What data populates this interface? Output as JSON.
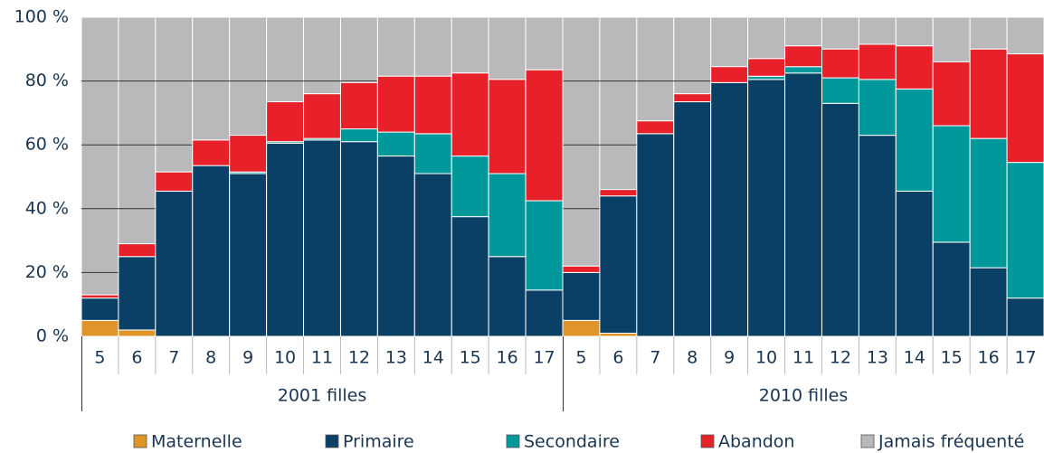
{
  "chart_data": {
    "type": "stacked-bar",
    "groups": [
      {
        "name": "2001 filles",
        "categories": [
          "5",
          "6",
          "7",
          "8",
          "9",
          "10",
          "11",
          "12",
          "13",
          "14",
          "15",
          "16",
          "17"
        ]
      },
      {
        "name": "2010 filles",
        "categories": [
          "5",
          "6",
          "7",
          "8",
          "9",
          "10",
          "11",
          "12",
          "13",
          "14",
          "15",
          "16",
          "17"
        ]
      }
    ],
    "series": [
      {
        "name": "Maternelle",
        "color": "#e0952a",
        "values": [
          5,
          2,
          0,
          0,
          0,
          0,
          0,
          0,
          0,
          0,
          0,
          0,
          0,
          5,
          1,
          0,
          0,
          0,
          0,
          0,
          0,
          0,
          0,
          0,
          0,
          0
        ]
      },
      {
        "name": "Primaire",
        "color": "#0a4066",
        "values": [
          7,
          23,
          45.5,
          53.5,
          51,
          60.5,
          61.5,
          61,
          56.5,
          51,
          37.5,
          25,
          14.5,
          15,
          43,
          63.5,
          73.5,
          79.5,
          80.5,
          82.5,
          73,
          63,
          45.5,
          29.5,
          21.5,
          12
        ]
      },
      {
        "name": "Secondaire",
        "color": "#00989a",
        "values": [
          0,
          0,
          0,
          0,
          0.5,
          0.5,
          0.5,
          4,
          7.5,
          12.5,
          19,
          26,
          28,
          0,
          0,
          0,
          0,
          0,
          1,
          2,
          8,
          17.5,
          32,
          36.5,
          40.5,
          42.5
        ]
      },
      {
        "name": "Abandon",
        "color": "#e8202a",
        "values": [
          1,
          4,
          6,
          8,
          11.5,
          12.5,
          14,
          14.5,
          17.5,
          18,
          26,
          29.5,
          41,
          2,
          2,
          4,
          2.5,
          5,
          5.5,
          6.5,
          9,
          11,
          13.5,
          20,
          28,
          34
        ]
      },
      {
        "name": "Jamais fréquenté",
        "color": "#b9b9bb",
        "values": [
          87,
          71,
          48.5,
          38.5,
          37,
          26.5,
          24,
          20.5,
          18.5,
          18.5,
          17.5,
          19.5,
          16.5,
          78,
          54,
          32.5,
          24,
          15.5,
          13,
          9,
          10,
          8.5,
          9,
          14,
          10,
          11.5
        ]
      }
    ],
    "ylim": [
      0,
      100
    ],
    "yticks": [
      {
        "value": 0,
        "label": "0 %"
      },
      {
        "value": 20,
        "label": "20 %"
      },
      {
        "value": 40,
        "label": "40 %"
      },
      {
        "value": 60,
        "label": "60 %"
      },
      {
        "value": 80,
        "label": "80 %"
      },
      {
        "value": 100,
        "label": "100 %"
      }
    ],
    "grid": true
  }
}
